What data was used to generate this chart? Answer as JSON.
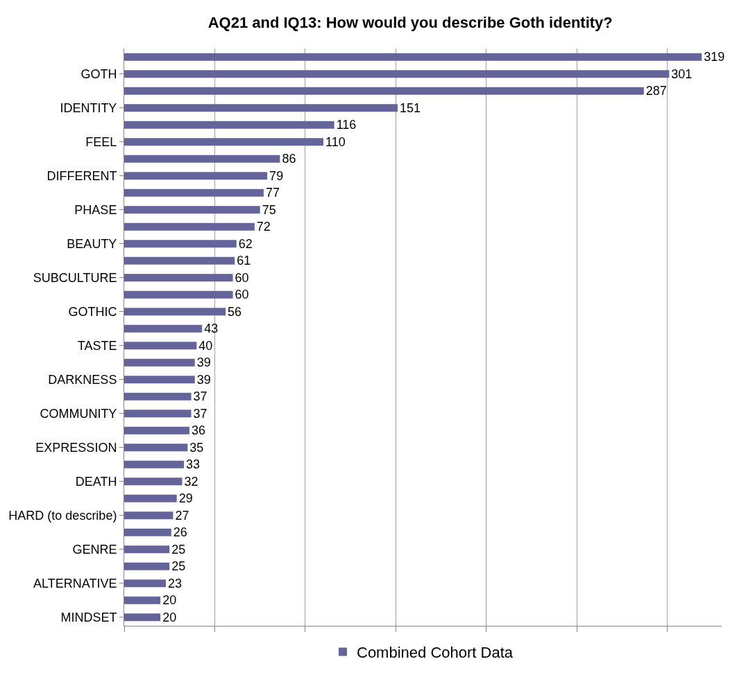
{
  "chart_data": {
    "type": "bar",
    "orientation": "horizontal",
    "title": "AQ21 and IQ13: How would you describe Goth identity?",
    "categories": [
      null,
      "GOTH",
      null,
      "IDENTITY",
      null,
      "FEEL",
      null,
      "DIFFERENT",
      null,
      "PHASE",
      null,
      "BEAUTY",
      null,
      "SUBCULTURE",
      null,
      "GOTHIC",
      null,
      "TASTE",
      null,
      "DARKNESS",
      null,
      "COMMUNITY",
      null,
      "EXPRESSION",
      null,
      "DEATH",
      null,
      "HARD (to describe)",
      null,
      "GENRE",
      null,
      "ALTERNATIVE",
      null,
      "MINDSET"
    ],
    "series": [
      {
        "name": "Combined Cohort Data",
        "color": "#64649a",
        "values": [
          319,
          301,
          287,
          151,
          116,
          110,
          86,
          79,
          77,
          75,
          72,
          62,
          61,
          60,
          60,
          56,
          43,
          40,
          39,
          39,
          37,
          37,
          36,
          35,
          33,
          32,
          29,
          27,
          26,
          25,
          25,
          23,
          20,
          20
        ]
      }
    ],
    "xlim": [
      0,
      330
    ],
    "xticks": [
      {
        "value": 0,
        "label": null
      },
      {
        "value": 50,
        "label": null
      },
      {
        "value": 100,
        "label": null
      },
      {
        "value": 150,
        "label": null
      },
      {
        "value": 200,
        "label": null
      },
      {
        "value": 250,
        "label": null
      },
      {
        "value": 300,
        "label": null
      }
    ],
    "tick_labels": "y",
    "grid": "x",
    "data_labels": true,
    "legend": "bottom"
  }
}
